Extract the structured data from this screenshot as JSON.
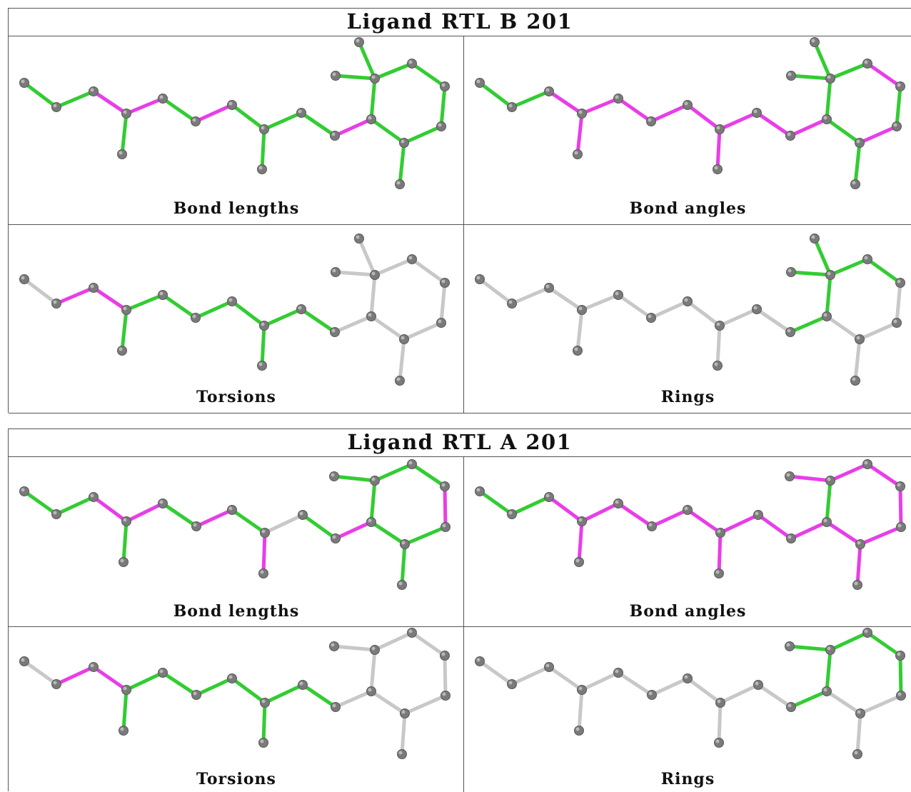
{
  "colors": {
    "good": "#33cc33",
    "outlier": "#e83ee8",
    "neutral": "#c8c8c8",
    "atom": "#7a7a7a"
  },
  "panels": [
    {
      "title": "Ligand RTL B 201",
      "cells": [
        {
          "label": "Bond lengths",
          "bonds": [
            "g",
            "g",
            "m",
            "g",
            "m",
            "g",
            "m",
            "g",
            "g",
            "g",
            "g",
            "m",
            "g",
            "g",
            "g",
            "g",
            "g",
            "g",
            "g",
            "g",
            "g"
          ]
        },
        {
          "label": "Bond angles",
          "bonds": [
            "g",
            "g",
            "m",
            "m",
            "m",
            "m",
            "m",
            "m",
            "m",
            "m",
            "m",
            "m",
            "g",
            "g",
            "g",
            "g",
            "m",
            "g",
            "m",
            "g",
            "g"
          ]
        },
        {
          "label": "Torsions",
          "bonds": [
            "n",
            "m",
            "m",
            "g",
            "g",
            "g",
            "g",
            "g",
            "g",
            "g",
            "g",
            "n",
            "n",
            "n",
            "n",
            "n",
            "n",
            "n",
            "n",
            "n",
            "n"
          ]
        },
        {
          "label": "Rings",
          "bonds": [
            "n",
            "n",
            "n",
            "n",
            "n",
            "n",
            "n",
            "n",
            "n",
            "n",
            "n",
            "g",
            "g",
            "g",
            "g",
            "g",
            "g",
            "n",
            "n",
            "n",
            "n"
          ]
        }
      ]
    },
    {
      "title": "Ligand RTL A 201",
      "cells": [
        {
          "label": "Bond lengths",
          "bonds": [
            "g",
            "g",
            "m",
            "g",
            "m",
            "g",
            "m",
            "g",
            "m",
            "n",
            "g",
            "m",
            "g",
            "g",
            "g",
            "g",
            "m",
            "g",
            "g",
            "g",
            "g"
          ]
        },
        {
          "label": "Bond angles",
          "bonds": [
            "g",
            "g",
            "m",
            "m",
            "m",
            "m",
            "m",
            "m",
            "m",
            "m",
            "m",
            "m",
            "g",
            "m",
            "m",
            "m",
            "m",
            "m",
            "m",
            "m",
            "m"
          ]
        },
        {
          "label": "Torsions",
          "bonds": [
            "n",
            "m",
            "m",
            "g",
            "g",
            "g",
            "g",
            "g",
            "g",
            "g",
            "g",
            "n",
            "n",
            "n",
            "n",
            "n",
            "n",
            "n",
            "n",
            "n",
            "n"
          ]
        },
        {
          "label": "Rings",
          "bonds": [
            "n",
            "n",
            "n",
            "n",
            "n",
            "n",
            "n",
            "n",
            "n",
            "n",
            "n",
            "g",
            "g",
            "g",
            "g",
            "g",
            "g",
            "n",
            "n",
            "n",
            "n"
          ]
        }
      ]
    }
  ]
}
